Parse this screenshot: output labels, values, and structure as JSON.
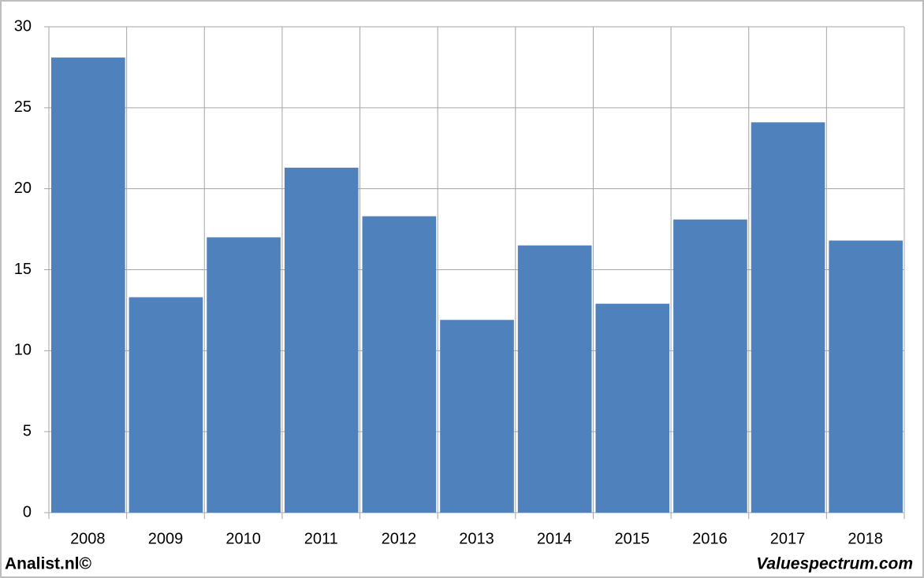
{
  "chart_data": {
    "type": "bar",
    "categories": [
      "2008",
      "2009",
      "2010",
      "2011",
      "2012",
      "2013",
      "2014",
      "2015",
      "2016",
      "2017",
      "2018"
    ],
    "values": [
      28.1,
      13.3,
      17.0,
      21.3,
      18.3,
      11.9,
      16.5,
      12.9,
      18.1,
      24.1,
      16.8
    ],
    "color": "#4f81bd",
    "ylim": [
      0,
      30
    ],
    "yticks": [
      0,
      5,
      10,
      15,
      20,
      25,
      30
    ],
    "grid": true,
    "annotations": [
      "Analist.nl©",
      "Valuespectrum.com"
    ]
  }
}
